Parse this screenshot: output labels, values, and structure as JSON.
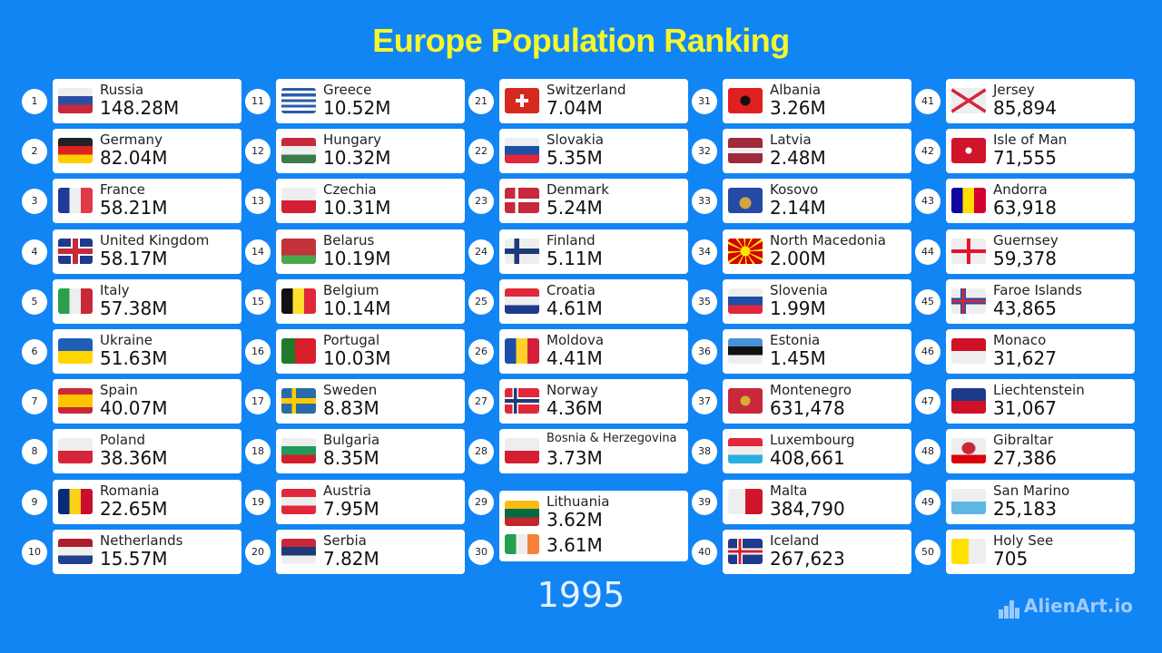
{
  "title": "Europe Population Ranking",
  "year": "1995",
  "brand": "AlienArt.io",
  "colors": {
    "background": "#1285f5",
    "title": "#f4f72a",
    "card": "#ffffff"
  },
  "chart_data": {
    "type": "table",
    "title": "Europe Population Ranking",
    "subtitle": "1995",
    "columns": [
      "rank",
      "country",
      "population"
    ],
    "rows": [
      {
        "rank": 1,
        "country": "Russia",
        "population": "148.28M",
        "flag": "russia-flag"
      },
      {
        "rank": 2,
        "country": "Germany",
        "population": "82.04M",
        "flag": "germany-flag"
      },
      {
        "rank": 3,
        "country": "France",
        "population": "58.21M",
        "flag": "france-flag"
      },
      {
        "rank": 4,
        "country": "United Kingdom",
        "population": "58.17M",
        "flag": "uk-flag"
      },
      {
        "rank": 5,
        "country": "Italy",
        "population": "57.38M",
        "flag": "italy-flag"
      },
      {
        "rank": 6,
        "country": "Ukraine",
        "population": "51.63M",
        "flag": "ukraine-flag"
      },
      {
        "rank": 7,
        "country": "Spain",
        "population": "40.07M",
        "flag": "spain-flag"
      },
      {
        "rank": 8,
        "country": "Poland",
        "population": "38.36M",
        "flag": "poland-flag"
      },
      {
        "rank": 9,
        "country": "Romania",
        "population": "22.65M",
        "flag": "romania-flag"
      },
      {
        "rank": 10,
        "country": "Netherlands",
        "population": "15.57M",
        "flag": "netherlands-flag"
      },
      {
        "rank": 11,
        "country": "Greece",
        "population": "10.52M",
        "flag": "greece-flag"
      },
      {
        "rank": 12,
        "country": "Hungary",
        "population": "10.32M",
        "flag": "hungary-flag"
      },
      {
        "rank": 13,
        "country": "Czechia",
        "population": "10.31M",
        "flag": "czechia-flag"
      },
      {
        "rank": 14,
        "country": "Belarus",
        "population": "10.19M",
        "flag": "belarus-flag"
      },
      {
        "rank": 15,
        "country": "Belgium",
        "population": "10.14M",
        "flag": "belgium-flag"
      },
      {
        "rank": 16,
        "country": "Portugal",
        "population": "10.03M",
        "flag": "portugal-flag"
      },
      {
        "rank": 17,
        "country": "Sweden",
        "population": "8.83M",
        "flag": "sweden-flag"
      },
      {
        "rank": 18,
        "country": "Bulgaria",
        "population": "8.35M",
        "flag": "bulgaria-flag"
      },
      {
        "rank": 19,
        "country": "Austria",
        "population": "7.95M",
        "flag": "austria-flag"
      },
      {
        "rank": 20,
        "country": "Serbia",
        "population": "7.82M",
        "flag": "serbia-flag"
      },
      {
        "rank": 21,
        "country": "Switzerland",
        "population": "7.04M",
        "flag": "switzerland-flag"
      },
      {
        "rank": 22,
        "country": "Slovakia",
        "population": "5.35M",
        "flag": "slovakia-flag"
      },
      {
        "rank": 23,
        "country": "Denmark",
        "population": "5.24M",
        "flag": "denmark-flag"
      },
      {
        "rank": 24,
        "country": "Finland",
        "population": "5.11M",
        "flag": "finland-flag"
      },
      {
        "rank": 25,
        "country": "Croatia",
        "population": "4.61M",
        "flag": "croatia-flag"
      },
      {
        "rank": 26,
        "country": "Moldova",
        "population": "4.41M",
        "flag": "moldova-flag"
      },
      {
        "rank": 27,
        "country": "Norway",
        "population": "4.36M",
        "flag": "norway-flag"
      },
      {
        "rank": 28,
        "country": "Bosnia & Herzegovina",
        "population": "3.73M",
        "flag": "czechia-flag"
      },
      {
        "rank": 29,
        "country": "Lithuania",
        "population": "3.62M",
        "flag": "lithuania-flag"
      },
      {
        "rank": 30,
        "country": "",
        "population": "3.61M",
        "flag": "ireland-flag"
      },
      {
        "rank": 31,
        "country": "Albania",
        "population": "3.26M",
        "flag": "albania-flag"
      },
      {
        "rank": 32,
        "country": "Latvia",
        "population": "2.48M",
        "flag": "latvia-flag"
      },
      {
        "rank": 33,
        "country": "Kosovo",
        "population": "2.14M",
        "flag": "kosovo-flag"
      },
      {
        "rank": 34,
        "country": "North Macedonia",
        "population": "2.00M",
        "flag": "north-macedonia-flag"
      },
      {
        "rank": 35,
        "country": "Slovenia",
        "population": "1.99M",
        "flag": "slovenia-flag"
      },
      {
        "rank": 36,
        "country": "Estonia",
        "population": "1.45M",
        "flag": "estonia-flag"
      },
      {
        "rank": 37,
        "country": "Montenegro",
        "population": "631,478",
        "flag": "montenegro-flag"
      },
      {
        "rank": 38,
        "country": "Luxembourg",
        "population": "408,661",
        "flag": "luxembourg-flag"
      },
      {
        "rank": 39,
        "country": "Malta",
        "population": "384,790",
        "flag": "malta-flag"
      },
      {
        "rank": 40,
        "country": "Iceland",
        "population": "267,623",
        "flag": "iceland-flag"
      },
      {
        "rank": 41,
        "country": "Jersey",
        "population": "85,894",
        "flag": "jersey-flag"
      },
      {
        "rank": 42,
        "country": "Isle of Man",
        "population": "71,555",
        "flag": "isle-of-man-flag"
      },
      {
        "rank": 43,
        "country": "Andorra",
        "population": "63,918",
        "flag": "andorra-flag"
      },
      {
        "rank": 44,
        "country": "Guernsey",
        "population": "59,378",
        "flag": "guernsey-flag"
      },
      {
        "rank": 45,
        "country": "Faroe Islands",
        "population": "43,865",
        "flag": "faroe-islands-flag"
      },
      {
        "rank": 46,
        "country": "Monaco",
        "population": "31,627",
        "flag": "monaco-flag"
      },
      {
        "rank": 47,
        "country": "Liechtenstein",
        "population": "31,067",
        "flag": "liechtenstein-flag"
      },
      {
        "rank": 48,
        "country": "Gibraltar",
        "population": "27,386",
        "flag": "gibraltar-flag"
      },
      {
        "rank": 49,
        "country": "San Marino",
        "population": "25,183",
        "flag": "san-marino-flag"
      },
      {
        "rank": 50,
        "country": "Holy See",
        "population": "705",
        "flag": "holy-see-flag"
      }
    ]
  }
}
